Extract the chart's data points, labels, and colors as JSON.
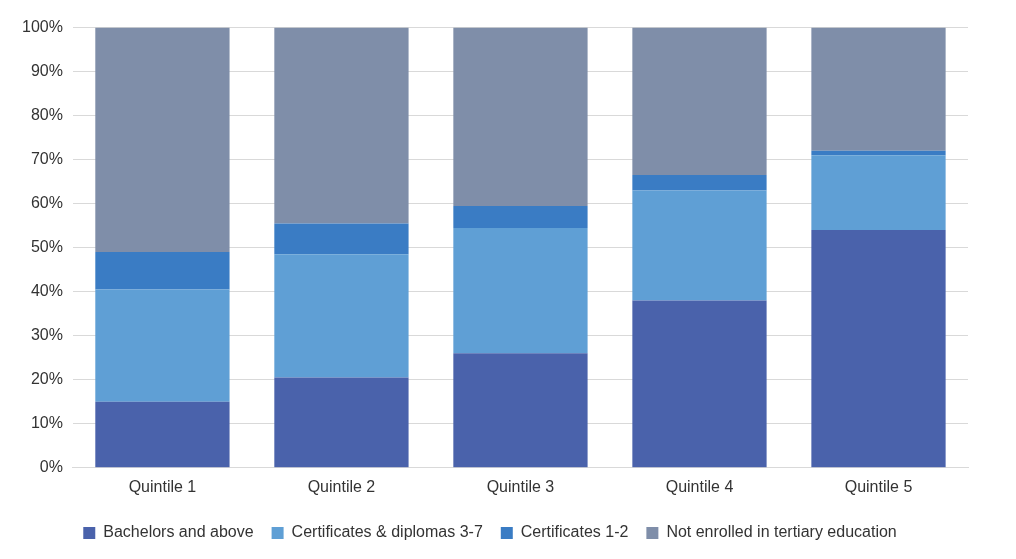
{
  "chart_data": {
    "type": "bar",
    "stacked": true,
    "categories": [
      "Quintile 1",
      "Quintile 2",
      "Quintile 3",
      "Quintile 4",
      "Quintile 5"
    ],
    "series": [
      {
        "name": "Bachelors and above",
        "color": "#4a62ab",
        "values": [
          15,
          20.5,
          26,
          38,
          54
        ]
      },
      {
        "name": "Certificates & diplomas 3-7",
        "color": "#5f9fd5",
        "values": [
          25.5,
          28,
          28.5,
          25,
          17
        ]
      },
      {
        "name": "Certificates 1-2",
        "color": "#3a7cc4",
        "values": [
          8.5,
          7,
          5,
          3.5,
          1
        ]
      },
      {
        "name": "Not enrolled in tertiary education",
        "color": "#7f8ea9",
        "values": [
          51,
          44.5,
          40.5,
          33.5,
          28
        ]
      }
    ],
    "ylim": [
      0,
      100
    ],
    "yticks": [
      {
        "value": 0,
        "label": "0%"
      },
      {
        "value": 10,
        "label": "10%"
      },
      {
        "value": 20,
        "label": "20%"
      },
      {
        "value": 30,
        "label": "30%"
      },
      {
        "value": 40,
        "label": "40%"
      },
      {
        "value": 50,
        "label": "50%"
      },
      {
        "value": 60,
        "label": "60%"
      },
      {
        "value": 70,
        "label": "70%"
      },
      {
        "value": 80,
        "label": "80%"
      },
      {
        "value": 90,
        "label": "90%"
      },
      {
        "value": 100,
        "label": "100%"
      }
    ],
    "grid": "y",
    "legend": "bottom"
  }
}
